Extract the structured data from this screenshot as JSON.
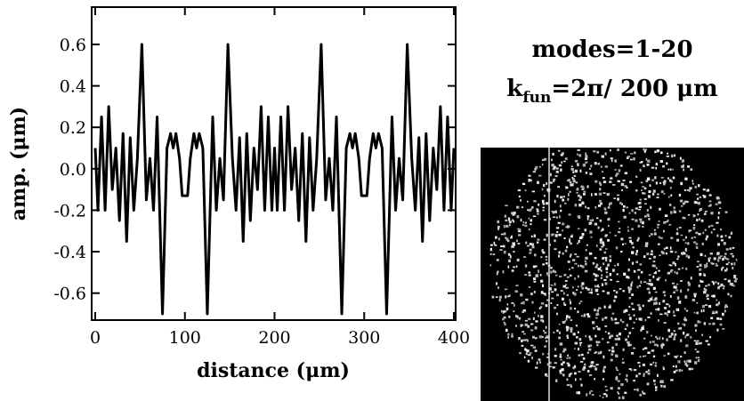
{
  "chart_data": {
    "type": "line",
    "xlabel": "distance (μm)",
    "ylabel": "amp. (μm)",
    "annotations": {
      "modes": "modes=1-20",
      "k_base": "k",
      "k_sub": "fun",
      "k_rest": "=2π/ 200 μm"
    },
    "xlim": [
      -4,
      402
    ],
    "ylim": [
      -0.73,
      0.78
    ],
    "xticks": [
      0,
      100,
      200,
      300,
      400
    ],
    "yticks": [
      -0.6,
      -0.4,
      -0.2,
      {
        "value": 0,
        "label": "0.0"
      },
      0.2,
      0.4,
      0.6
    ],
    "series": [
      {
        "color": "#000000",
        "x": [
          0,
          3,
          7,
          11,
          15,
          19,
          23,
          27,
          31,
          35,
          39,
          43,
          47,
          52,
          57,
          61,
          65,
          69,
          75,
          80,
          84,
          87,
          90,
          94,
          97,
          100,
          103,
          106,
          110,
          113,
          116,
          120,
          125,
          131,
          135,
          139,
          143,
          148,
          153,
          157,
          161,
          165,
          169,
          173,
          177,
          181,
          185,
          189,
          193,
          197,
          200,
          203,
          207,
          211,
          215,
          219,
          223,
          227,
          231,
          235,
          239,
          243,
          247,
          252,
          257,
          261,
          265,
          269,
          275,
          280,
          284,
          287,
          290,
          294,
          297,
          300,
          303,
          306,
          310,
          313,
          316,
          320,
          325,
          331,
          335,
          339,
          343,
          348,
          353,
          357,
          361,
          365,
          369,
          373,
          377,
          381,
          385,
          389,
          393,
          397,
          400
        ],
        "values": [
          0.1,
          -0.2,
          0.25,
          -0.2,
          0.3,
          -0.1,
          0.1,
          -0.25,
          0.17,
          -0.35,
          0.15,
          -0.2,
          0.05,
          0.6,
          -0.15,
          0.05,
          -0.2,
          0.25,
          -0.7,
          0.1,
          0.17,
          0.1,
          0.17,
          0.05,
          -0.13,
          -0.13,
          -0.13,
          0.05,
          0.17,
          0.1,
          0.17,
          0.1,
          -0.7,
          0.25,
          -0.2,
          0.05,
          -0.15,
          0.6,
          0.05,
          -0.2,
          0.15,
          -0.35,
          0.17,
          -0.25,
          0.1,
          -0.1,
          0.3,
          -0.2,
          0.25,
          -0.2,
          0.1,
          -0.2,
          0.25,
          -0.2,
          0.3,
          -0.1,
          0.1,
          -0.25,
          0.17,
          -0.35,
          0.15,
          -0.2,
          0.05,
          0.6,
          -0.15,
          0.05,
          -0.2,
          0.25,
          -0.7,
          0.1,
          0.17,
          0.1,
          0.17,
          0.05,
          -0.13,
          -0.13,
          -0.13,
          0.05,
          0.17,
          0.1,
          0.17,
          0.1,
          -0.7,
          0.25,
          -0.2,
          0.05,
          -0.15,
          0.6,
          0.05,
          -0.2,
          0.15,
          -0.35,
          0.17,
          -0.25,
          0.1,
          -0.1,
          0.3,
          -0.2,
          0.25,
          -0.2,
          0.1
        ]
      }
    ]
  }
}
